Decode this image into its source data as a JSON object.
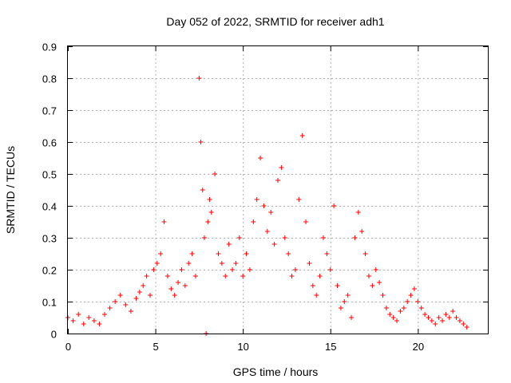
{
  "chart_data": {
    "type": "scatter",
    "title": "Day 052 of 2022, SRMTID for receiver adh1",
    "xlabel": "GPS time / hours",
    "ylabel": "SRMTID / TECUs",
    "xlim": [
      0,
      24
    ],
    "ylim": [
      0,
      0.9
    ],
    "grid": true,
    "marker": "+",
    "color": "#ff0000",
    "xticks": [
      0,
      5,
      10,
      15,
      20
    ],
    "xtick_labels": [
      "0",
      "5",
      "10",
      "15",
      "20"
    ],
    "yticks": [
      0,
      0.1,
      0.2,
      0.3,
      0.4,
      0.5,
      0.6,
      0.7,
      0.8,
      0.9
    ],
    "ytick_labels": [
      "0",
      "0.1",
      "0.2",
      "0.3",
      "0.4",
      "0.5",
      "0.6",
      "0.7",
      "0.8",
      "0.9"
    ],
    "series": [
      {
        "name": "adh1",
        "x": [
          0.0,
          0.3,
          0.6,
          0.9,
          1.2,
          1.5,
          1.8,
          2.1,
          2.4,
          2.7,
          3.0,
          3.3,
          3.6,
          3.9,
          4.1,
          4.3,
          4.5,
          4.7,
          4.9,
          5.1,
          5.3,
          5.5,
          5.7,
          5.9,
          6.1,
          6.3,
          6.5,
          6.7,
          6.9,
          7.1,
          7.3,
          7.5,
          7.6,
          7.7,
          7.8,
          7.9,
          8.0,
          8.1,
          8.2,
          8.4,
          8.6,
          8.8,
          9.0,
          9.2,
          9.4,
          9.6,
          9.8,
          10.0,
          10.2,
          10.4,
          10.6,
          10.8,
          11.0,
          11.2,
          11.4,
          11.6,
          11.8,
          12.0,
          12.2,
          12.4,
          12.6,
          12.8,
          13.0,
          13.2,
          13.4,
          13.6,
          13.8,
          14.0,
          14.2,
          14.4,
          14.6,
          14.8,
          15.0,
          15.2,
          15.4,
          15.6,
          15.8,
          16.0,
          16.2,
          16.4,
          16.6,
          16.8,
          17.0,
          17.2,
          17.4,
          17.6,
          17.8,
          18.0,
          18.2,
          18.4,
          18.6,
          18.8,
          19.0,
          19.2,
          19.4,
          19.6,
          19.8,
          20.0,
          20.2,
          20.4,
          20.6,
          20.8,
          21.0,
          21.2,
          21.4,
          21.6,
          21.8,
          22.0,
          22.2,
          22.4,
          22.6,
          22.8
        ],
        "y": [
          0.05,
          0.04,
          0.06,
          0.03,
          0.05,
          0.04,
          0.03,
          0.06,
          0.08,
          0.1,
          0.12,
          0.09,
          0.07,
          0.11,
          0.13,
          0.15,
          0.18,
          0.12,
          0.2,
          0.22,
          0.25,
          0.35,
          0.18,
          0.14,
          0.12,
          0.16,
          0.2,
          0.15,
          0.22,
          0.25,
          0.18,
          0.8,
          0.6,
          0.45,
          0.3,
          0.0,
          0.35,
          0.42,
          0.38,
          0.5,
          0.25,
          0.22,
          0.18,
          0.28,
          0.2,
          0.22,
          0.3,
          0.18,
          0.25,
          0.2,
          0.35,
          0.42,
          0.55,
          0.4,
          0.32,
          0.38,
          0.28,
          0.48,
          0.52,
          0.3,
          0.25,
          0.18,
          0.2,
          0.42,
          0.62,
          0.35,
          0.22,
          0.15,
          0.12,
          0.18,
          0.3,
          0.25,
          0.2,
          0.4,
          0.15,
          0.08,
          0.1,
          0.12,
          0.05,
          0.3,
          0.38,
          0.32,
          0.25,
          0.18,
          0.15,
          0.2,
          0.16,
          0.12,
          0.08,
          0.06,
          0.05,
          0.04,
          0.07,
          0.08,
          0.1,
          0.12,
          0.14,
          0.1,
          0.08,
          0.06,
          0.05,
          0.04,
          0.03,
          0.05,
          0.04,
          0.06,
          0.05,
          0.07,
          0.05,
          0.04,
          0.03,
          0.02
        ]
      }
    ]
  }
}
